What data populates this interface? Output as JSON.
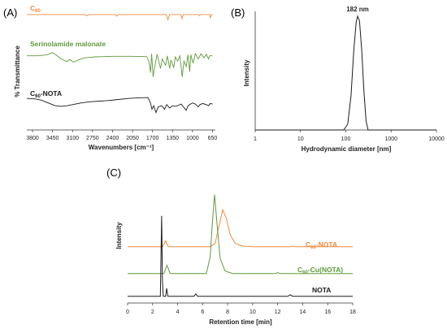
{
  "colors": {
    "orange": "#ee8a3f",
    "green": "#5f9a3c",
    "black": "#1a1a1a",
    "axis": "#333333"
  },
  "panels": {
    "A": {
      "label": "(A)"
    },
    "B": {
      "label": "(B)"
    },
    "C": {
      "label": "(C)"
    }
  },
  "chart_data": [
    {
      "id": "A",
      "type": "line",
      "xlabel": "Wavenumbers [cm⁻¹]",
      "ylabel": "% Transmittance",
      "xlim": [
        3900,
        600
      ],
      "x_ticks": [
        3800,
        3450,
        3100,
        2750,
        2400,
        2050,
        1700,
        1350,
        1000,
        650
      ],
      "series": [
        {
          "name": "C60",
          "name_main": "C",
          "name_sub": "60",
          "name_rest": "",
          "color": "orange",
          "points": [
            [
              3900,
              0.02
            ],
            [
              2900,
              0.02
            ],
            [
              2850,
              -0.15
            ],
            [
              2800,
              0.02
            ],
            [
              2340,
              0.02
            ],
            [
              2330,
              -0.25
            ],
            [
              2300,
              0.02
            ],
            [
              1460,
              0.02
            ],
            [
              1430,
              -0.9
            ],
            [
              1400,
              0.02
            ],
            [
              1200,
              0.02
            ],
            [
              1182,
              -0.7
            ],
            [
              1160,
              0.02
            ],
            [
              900,
              0.02
            ],
            [
              880,
              -0.2
            ],
            [
              860,
              0.02
            ],
            [
              700,
              0.02
            ],
            [
              690,
              -0.6
            ],
            [
              670,
              0.02
            ],
            [
              650,
              0.02
            ]
          ]
        },
        {
          "name": "Serinolamide malonate",
          "name_main": "Serinolamide malonate",
          "name_sub": "",
          "name_rest": "",
          "color": "green",
          "points": [
            [
              3900,
              0.1
            ],
            [
              3700,
              0.1
            ],
            [
              3550,
              0.2
            ],
            [
              3450,
              0.4
            ],
            [
              3380,
              0.15
            ],
            [
              3300,
              -0.2
            ],
            [
              3200,
              -0.45
            ],
            [
              3150,
              -0.25
            ],
            [
              3080,
              -0.5
            ],
            [
              3000,
              -0.3
            ],
            [
              2900,
              -0.1
            ],
            [
              2700,
              0.0
            ],
            [
              2400,
              0.05
            ],
            [
              2100,
              0.05
            ],
            [
              1800,
              0.02
            ],
            [
              1760,
              -0.5
            ],
            [
              1735,
              -1.5
            ],
            [
              1715,
              0.3
            ],
            [
              1690,
              -1.9
            ],
            [
              1670,
              -1.2
            ],
            [
              1650,
              -0.6
            ],
            [
              1620,
              0.25
            ],
            [
              1560,
              -1.1
            ],
            [
              1530,
              -0.2
            ],
            [
              1470,
              -0.8
            ],
            [
              1440,
              0.1
            ],
            [
              1400,
              -1.1
            ],
            [
              1380,
              -0.3
            ],
            [
              1330,
              -1.0
            ],
            [
              1300,
              0.0
            ],
            [
              1260,
              -0.4
            ],
            [
              1220,
              0.1
            ],
            [
              1180,
              -1.9
            ],
            [
              1150,
              -0.4
            ],
            [
              1110,
              -0.9
            ],
            [
              1080,
              0.2
            ],
            [
              1050,
              -1.4
            ],
            [
              1030,
              0.2
            ],
            [
              990,
              -0.6
            ],
            [
              950,
              0.3
            ],
            [
              900,
              -0.2
            ],
            [
              850,
              0.3
            ],
            [
              800,
              -0.1
            ],
            [
              760,
              0.25
            ],
            [
              720,
              -0.2
            ],
            [
              700,
              0.1
            ],
            [
              650,
              0.1
            ]
          ]
        },
        {
          "name": "C60-NOTA",
          "name_main": "C",
          "name_sub": "60",
          "name_rest": "-NOTA",
          "color": "black",
          "points": [
            [
              3900,
              0.35
            ],
            [
              3750,
              0.3
            ],
            [
              3650,
              0.2
            ],
            [
              3500,
              -0.1
            ],
            [
              3400,
              -0.3
            ],
            [
              3300,
              -0.35
            ],
            [
              3200,
              -0.3
            ],
            [
              3100,
              -0.2
            ],
            [
              2950,
              -0.05
            ],
            [
              2800,
              0.05
            ],
            [
              2500,
              0.15
            ],
            [
              2300,
              0.25
            ],
            [
              2100,
              0.35
            ],
            [
              1950,
              0.4
            ],
            [
              1780,
              0.42
            ],
            [
              1740,
              0.0
            ],
            [
              1710,
              -0.6
            ],
            [
              1680,
              -0.3
            ],
            [
              1640,
              -0.9
            ],
            [
              1600,
              -0.4
            ],
            [
              1540,
              -0.3
            ],
            [
              1490,
              -0.6
            ],
            [
              1450,
              -0.2
            ],
            [
              1400,
              -0.5
            ],
            [
              1350,
              -0.3
            ],
            [
              1300,
              -0.35
            ],
            [
              1240,
              -0.25
            ],
            [
              1200,
              -0.15
            ],
            [
              1110,
              -0.7
            ],
            [
              1080,
              -0.3
            ],
            [
              1050,
              -0.2
            ],
            [
              1000,
              -0.05
            ],
            [
              950,
              -0.15
            ],
            [
              900,
              -0.4
            ],
            [
              870,
              -0.2
            ],
            [
              820,
              -0.1
            ],
            [
              760,
              -0.2
            ],
            [
              720,
              -0.3
            ],
            [
              690,
              -0.1
            ],
            [
              650,
              -0.15
            ]
          ]
        }
      ]
    },
    {
      "id": "B",
      "type": "line",
      "xlabel": "Hydrodynamic diameter [nm]",
      "ylabel": "Intensity",
      "xscale": "log",
      "xlim": [
        1,
        10000
      ],
      "x_ticks": [
        1,
        10,
        100,
        1000,
        10000
      ],
      "peak_label": "182 nm",
      "peak_x": 182,
      "series": [
        {
          "color": "black",
          "points": [
            [
              1,
              0
            ],
            [
              90,
              0
            ],
            [
              110,
              0.05
            ],
            [
              130,
              0.3
            ],
            [
              150,
              0.7
            ],
            [
              170,
              0.95
            ],
            [
              182,
              1.0
            ],
            [
              200,
              0.96
            ],
            [
              225,
              0.7
            ],
            [
              250,
              0.35
            ],
            [
              280,
              0.08
            ],
            [
              310,
              0
            ],
            [
              10000,
              0
            ]
          ]
        }
      ]
    },
    {
      "id": "C",
      "type": "line",
      "xlabel": "Retention time [min]",
      "ylabel": "Intensity",
      "xlim": [
        0,
        18
      ],
      "x_ticks": [
        0,
        2,
        4,
        6,
        8,
        10,
        12,
        14,
        16,
        18
      ],
      "series": [
        {
          "name": "C60-NOTA",
          "name_main": "C",
          "name_sub": "60",
          "name_rest": "-NOTA",
          "color": "orange",
          "offset": 0.42,
          "points": [
            [
              0,
              0
            ],
            [
              2.8,
              0
            ],
            [
              3.05,
              0.09
            ],
            [
              3.25,
              0
            ],
            [
              6.6,
              0
            ],
            [
              7.0,
              0.05
            ],
            [
              7.3,
              0.3
            ],
            [
              7.6,
              0.55
            ],
            [
              7.9,
              0.42
            ],
            [
              8.2,
              0.18
            ],
            [
              8.6,
              0.05
            ],
            [
              9.2,
              0.01
            ],
            [
              10,
              0
            ],
            [
              13,
              0
            ],
            [
              13.2,
              0.01
            ],
            [
              13.4,
              0
            ],
            [
              18,
              0
            ]
          ]
        },
        {
          "name": "C60-Cu(NOTA)",
          "name_main": "C",
          "name_sub": "60",
          "name_rest": "-Cu(NOTA)",
          "color": "green",
          "offset": 0.22,
          "points": [
            [
              0,
              0
            ],
            [
              2.9,
              0
            ],
            [
              3.15,
              0.1
            ],
            [
              3.4,
              0
            ],
            [
              6.3,
              0
            ],
            [
              6.6,
              0.2
            ],
            [
              6.8,
              0.65
            ],
            [
              6.95,
              0.95
            ],
            [
              7.15,
              0.6
            ],
            [
              7.4,
              0.18
            ],
            [
              7.8,
              0.03
            ],
            [
              8.4,
              0
            ],
            [
              11.8,
              0
            ],
            [
              12,
              0.01
            ],
            [
              12.2,
              0
            ],
            [
              18,
              0
            ]
          ]
        },
        {
          "name": "NOTA",
          "name_main": "NOTA",
          "name_sub": "",
          "name_rest": "",
          "color": "black",
          "offset": 0.05,
          "points": [
            [
              0,
              0
            ],
            [
              2.62,
              0
            ],
            [
              2.72,
              1.0
            ],
            [
              2.78,
              0.2
            ],
            [
              2.85,
              0
            ],
            [
              3.05,
              0
            ],
            [
              3.12,
              0.1
            ],
            [
              3.22,
              0
            ],
            [
              5.3,
              0
            ],
            [
              5.45,
              0.03
            ],
            [
              5.6,
              0
            ],
            [
              12.8,
              0
            ],
            [
              13.0,
              0.02
            ],
            [
              13.2,
              0
            ],
            [
              18,
              0
            ]
          ]
        }
      ]
    }
  ]
}
